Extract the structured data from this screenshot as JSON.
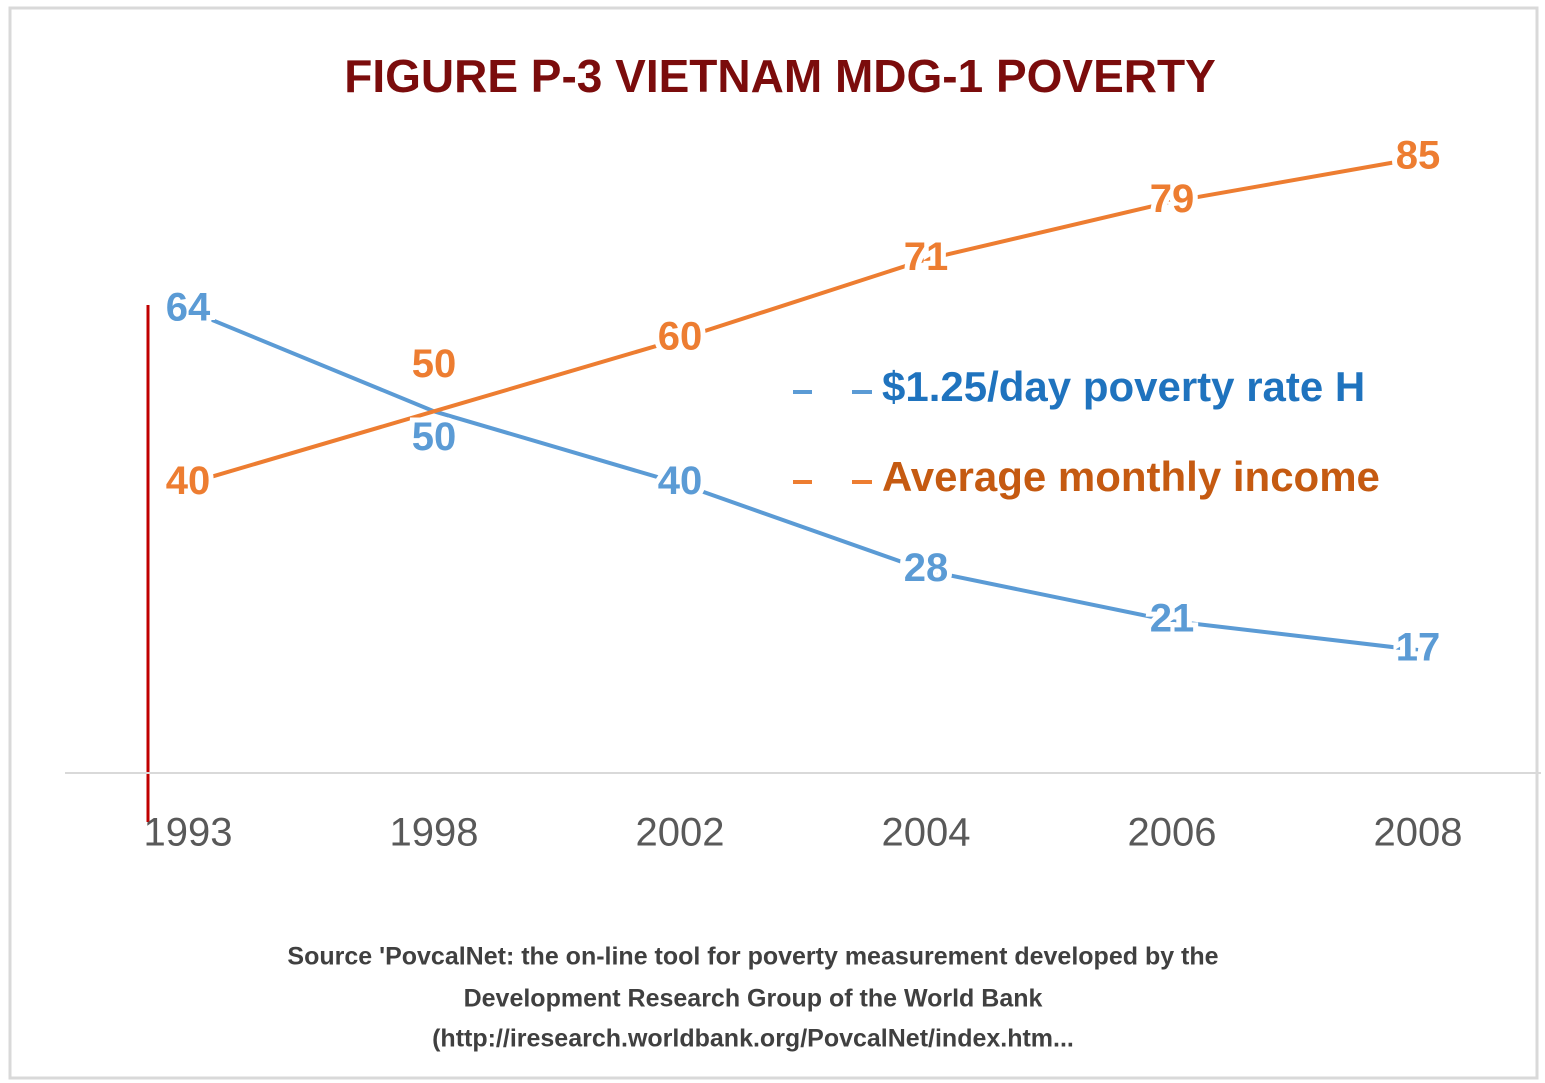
{
  "chart_data": {
    "type": "line",
    "title": "FIGURE P-3 VIETNAM MDG-1 POVERTY",
    "categories": [
      "1993",
      "1998",
      "2002",
      "2004",
      "2006",
      "2008"
    ],
    "series": [
      {
        "name": "$1.25/day poverty rate H",
        "color": "#5b9bd5",
        "values": [
          64,
          50,
          40,
          28,
          21,
          17
        ]
      },
      {
        "name": "Average monthly income",
        "color": "#ed7d31",
        "values": [
          40,
          50,
          60,
          71,
          79,
          85
        ]
      }
    ],
    "ylim": [
      0,
      90
    ],
    "source": [
      "Source 'PovcalNet: the on-line tool for poverty measurement developed by the",
      "Development Research Group of the World Bank",
      "(http://iresearch.worldbank.org/PovcalNet/index.htm..."
    ]
  }
}
